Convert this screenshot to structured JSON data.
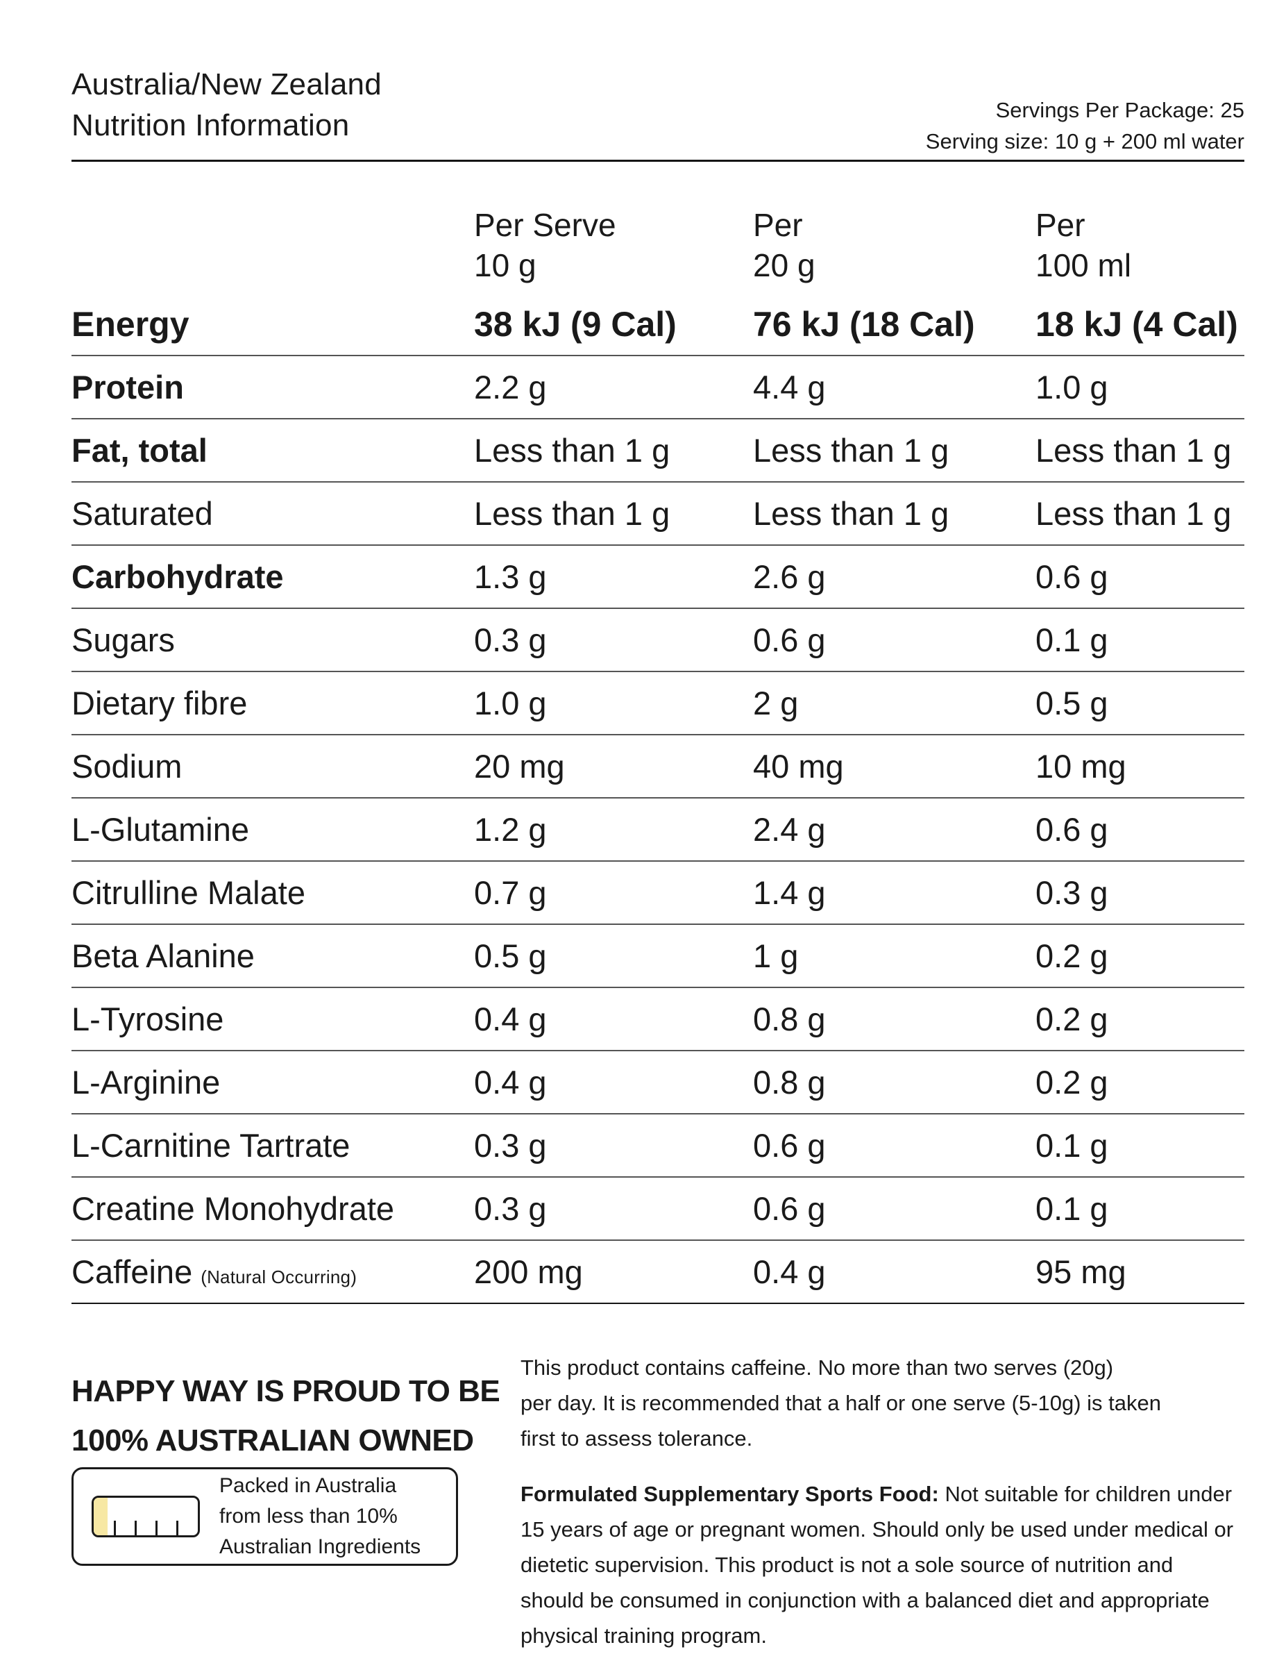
{
  "header": {
    "title_line1": "Australia/New Zealand",
    "title_line2": "Nutrition Information",
    "servings_per_package": "Servings Per Package: 25",
    "serving_size": "Serving size: 10 g + 200 ml water"
  },
  "table": {
    "columns": [
      {
        "line1": "Per Serve",
        "line2": "10 g"
      },
      {
        "line1": "Per",
        "line2": "20 g"
      },
      {
        "line1": "Per",
        "line2": "100 ml"
      }
    ],
    "rows": [
      {
        "label": "Energy",
        "label_bold": true,
        "values_bold": true,
        "values": [
          "38 kJ (9 Cal)",
          "76 kJ (18 Cal)",
          "18 kJ (4 Cal)"
        ]
      },
      {
        "label": "Protein",
        "label_bold": true,
        "values_bold": false,
        "values": [
          "2.2 g",
          "4.4 g",
          "1.0 g"
        ]
      },
      {
        "label": "Fat, total",
        "label_bold": true,
        "values_bold": false,
        "values": [
          "Less than 1 g",
          "Less than 1 g",
          "Less than 1 g"
        ]
      },
      {
        "label": "Saturated",
        "label_bold": false,
        "values_bold": false,
        "values": [
          "Less than 1 g",
          "Less than 1 g",
          "Less than 1 g"
        ]
      },
      {
        "label": "Carbohydrate",
        "label_bold": true,
        "values_bold": false,
        "values": [
          "1.3 g",
          "2.6 g",
          "0.6 g"
        ]
      },
      {
        "label": "Sugars",
        "label_bold": false,
        "values_bold": false,
        "values": [
          "0.3 g",
          "0.6 g",
          "0.1 g"
        ]
      },
      {
        "label": "Dietary fibre",
        "label_bold": false,
        "values_bold": false,
        "values": [
          "1.0 g",
          "2 g",
          "0.5 g"
        ]
      },
      {
        "label": "Sodium",
        "label_bold": false,
        "values_bold": false,
        "values": [
          "20 mg",
          "40 mg",
          "10 mg"
        ]
      },
      {
        "label": "L-Glutamine",
        "label_bold": false,
        "values_bold": false,
        "values": [
          "1.2 g",
          "2.4 g",
          "0.6 g"
        ]
      },
      {
        "label": "Citrulline Malate",
        "label_bold": false,
        "values_bold": false,
        "values": [
          "0.7 g",
          "1.4 g",
          "0.3 g"
        ]
      },
      {
        "label": "Beta Alanine",
        "label_bold": false,
        "values_bold": false,
        "values": [
          "0.5 g",
          "1 g",
          "0.2 g"
        ]
      },
      {
        "label": "L-Tyrosine",
        "label_bold": false,
        "values_bold": false,
        "values": [
          "0.4 g",
          "0.8 g",
          "0.2 g"
        ]
      },
      {
        "label": "L-Arginine",
        "label_bold": false,
        "values_bold": false,
        "values": [
          "0.4 g",
          "0.8 g",
          "0.2 g"
        ]
      },
      {
        "label": "L-Carnitine Tartrate",
        "label_bold": false,
        "values_bold": false,
        "values": [
          "0.3 g",
          "0.6 g",
          "0.1 g"
        ]
      },
      {
        "label": "Creatine Monohydrate",
        "label_bold": false,
        "values_bold": false,
        "values": [
          "0.3 g",
          "0.6 g",
          "0.1 g"
        ]
      },
      {
        "label": "Caffeine",
        "label_suffix": "(Natural Occurring)",
        "label_bold": false,
        "values_bold": false,
        "values": [
          "200 mg",
          "0.4 g",
          "95 mg"
        ]
      }
    ]
  },
  "footer": {
    "ownership_line1": "HAPPY WAY IS PROUD TO BE",
    "ownership_line2": "100% AUSTRALIAN OWNED",
    "packed_line1": "Packed in Australia",
    "packed_line2": "from less than 10%",
    "packed_line3": "Australian Ingredients",
    "caffeine_notice": "This product contains caffeine. No more than two serves (20g)\nper day. It is recommended that a half or one serve (5-10g) is taken\nfirst to assess tolerance.",
    "fssf_label": "Formulated Supplementary Sports Food:",
    "fssf_text": "Not suitable for children under 15 years of age or pregnant women. Should only be used under medical or dietetic supervision. This product is not a sole source of nutrition and should be consumed in conjunction with a balanced diet and appropriate physical training program."
  },
  "colors": {
    "text": "#1a1a1a",
    "rule_black": "#151515",
    "rule_gray": "#555555",
    "bar_fill_yellow": "#F7E8A4"
  }
}
